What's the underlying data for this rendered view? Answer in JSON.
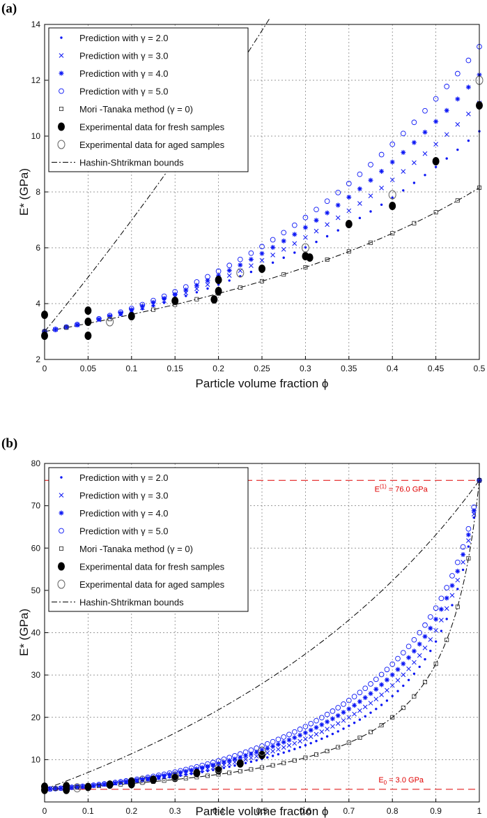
{
  "colors": {
    "prediction": "#0b16f5",
    "experimental": "#000000",
    "mori_tanaka": "#222222",
    "hs_bounds": "#000000",
    "reference_line": "#e00000",
    "grid": "#777777"
  },
  "legend": [
    {
      "label": "Prediction with γ = 2.0",
      "marker": "dot"
    },
    {
      "label": "Prediction with γ = 3.0",
      "marker": "x"
    },
    {
      "label": "Prediction with γ = 4.0",
      "marker": "star"
    },
    {
      "label": "Prediction with γ = 5.0",
      "marker": "circle"
    },
    {
      "label": "Mori -Tanaka method  (γ = 0)",
      "marker": "square"
    },
    {
      "label": "Experimental data for fresh samples",
      "marker": "filled-circle"
    },
    {
      "label": "Experimental data for aged samples",
      "marker": "open-circle"
    },
    {
      "label": "Hashin-Shtrikman bounds",
      "marker": "dashdot"
    }
  ],
  "chart_data": [
    {
      "type": "scatter",
      "panel_label": "(a)",
      "xlabel": "Particle volume fraction ϕ",
      "ylabel": "E* (GPa)",
      "xlim": [
        0,
        0.5
      ],
      "ylim": [
        2,
        14
      ],
      "xticks": [
        0,
        0.05,
        0.1,
        0.15,
        0.2,
        0.25,
        0.3,
        0.35,
        0.4,
        0.45,
        0.5
      ],
      "xtick_labels": [
        "0",
        "0.05",
        "0.1",
        "0.15",
        "0.2",
        "0.25",
        "0.3",
        "0.35",
        "0.4",
        "0.45",
        "0.5"
      ],
      "yticks": [
        2,
        4,
        6,
        8,
        10,
        12,
        14
      ],
      "ytick_labels": [
        "2",
        "4",
        "6",
        "8",
        "10",
        "12",
        "14"
      ],
      "grid": true,
      "legend_position": "top-left",
      "model": {
        "E0": 3.0,
        "E1": 76.0,
        "step": 0.0125
      },
      "series": [
        {
          "name": "Prediction with γ = 2.0",
          "marker": "dot",
          "gamma": 2.0
        },
        {
          "name": "Prediction with γ = 3.0",
          "marker": "x",
          "gamma": 3.0
        },
        {
          "name": "Prediction with γ = 4.0",
          "marker": "star",
          "gamma": 4.0
        },
        {
          "name": "Prediction with γ = 5.0",
          "marker": "circle",
          "gamma": 5.0
        },
        {
          "name": "Mori -Tanaka method  (γ = 0)",
          "marker": "square",
          "gamma": 0
        },
        {
          "name": "Experimental data for fresh samples",
          "marker": "filled-circle",
          "points": [
            [
              0,
              2.85
            ],
            [
              0,
              3.6
            ],
            [
              0.05,
              2.85
            ],
            [
              0.05,
              3.35
            ],
            [
              0.05,
              3.75
            ],
            [
              0.1,
              3.55
            ],
            [
              0.15,
              4.1
            ],
            [
              0.195,
              4.15
            ],
            [
              0.2,
              4.45
            ],
            [
              0.2,
              4.85
            ],
            [
              0.25,
              5.25
            ],
            [
              0.3,
              5.7
            ],
            [
              0.305,
              5.65
            ],
            [
              0.35,
              6.85
            ],
            [
              0.4,
              7.5
            ],
            [
              0.45,
              9.1
            ],
            [
              0.5,
              11.1
            ]
          ]
        },
        {
          "name": "Experimental data for aged samples",
          "marker": "open-circle",
          "points": [
            [
              0.075,
              3.35
            ],
            [
              0.225,
              5.1
            ],
            [
              0.3,
              6.0
            ],
            [
              0.4,
              7.9
            ],
            [
              0.5,
              12.0
            ]
          ]
        },
        {
          "name": "Hashin-Shtrikman bounds",
          "marker": "dashdot"
        }
      ]
    },
    {
      "type": "scatter",
      "panel_label": "(b)",
      "xlabel": "Particle volume fraction ϕ",
      "ylabel": "E* (GPa)",
      "xlim": [
        0,
        1
      ],
      "ylim": [
        0,
        80
      ],
      "xticks": [
        0,
        0.1,
        0.2,
        0.3,
        0.4,
        0.5,
        0.6,
        0.7,
        0.8,
        0.9,
        1
      ],
      "xtick_labels": [
        "0",
        "0.1",
        "0.2",
        "0.3",
        "0.4",
        "0.5",
        "0.6",
        "0.7",
        "0.8",
        "0.9",
        "1"
      ],
      "yticks": [
        10,
        20,
        30,
        40,
        50,
        60,
        70,
        80
      ],
      "ytick_labels": [
        "10",
        "20",
        "30",
        "40",
        "50",
        "60",
        "70",
        "80"
      ],
      "grid": true,
      "legend_position": "top-left",
      "model": {
        "E0": 3.0,
        "E1": 76.0,
        "step": 0.0125
      },
      "reference_lines": [
        {
          "y": 76.0,
          "label": "E(1) = 76.0 GPa",
          "label_main": "E",
          "label_sup": "(1)",
          "label_rest": " = 76.0 GPa",
          "label_x": 0.82
        },
        {
          "y": 3.0,
          "label": "E0 = 3.0 GPa",
          "label_main": "E",
          "label_sub": "0",
          "label_rest": " = 3.0 GPa",
          "label_x": 0.82
        }
      ],
      "series": [
        {
          "name": "Prediction with γ = 2.0",
          "marker": "dot",
          "gamma": 2.0
        },
        {
          "name": "Prediction with γ = 3.0",
          "marker": "x",
          "gamma": 3.0
        },
        {
          "name": "Prediction with γ = 4.0",
          "marker": "star",
          "gamma": 4.0
        },
        {
          "name": "Prediction with γ = 5.0",
          "marker": "circle",
          "gamma": 5.0
        },
        {
          "name": "Mori -Tanaka method  (γ = 0)",
          "marker": "square",
          "gamma": 0
        },
        {
          "name": "Experimental data for fresh samples",
          "marker": "filled-circle",
          "points": [
            [
              0,
              2.85
            ],
            [
              0,
              3.6
            ],
            [
              0.05,
              2.85
            ],
            [
              0.05,
              3.75
            ],
            [
              0.1,
              3.55
            ],
            [
              0.15,
              4.1
            ],
            [
              0.2,
              4.2
            ],
            [
              0.2,
              4.85
            ],
            [
              0.25,
              5.25
            ],
            [
              0.3,
              5.7
            ],
            [
              0.35,
              6.85
            ],
            [
              0.4,
              7.5
            ],
            [
              0.45,
              9.1
            ],
            [
              0.5,
              11.1
            ]
          ]
        },
        {
          "name": "Experimental data for aged samples",
          "marker": "open-circle",
          "points": [
            [
              0.075,
              3.35
            ],
            [
              0.225,
              5.1
            ],
            [
              0.3,
              6.0
            ],
            [
              0.4,
              7.9
            ],
            [
              0.5,
              12.0
            ]
          ]
        },
        {
          "name": "Hashin-Shtrikman bounds",
          "marker": "dashdot"
        }
      ]
    }
  ]
}
